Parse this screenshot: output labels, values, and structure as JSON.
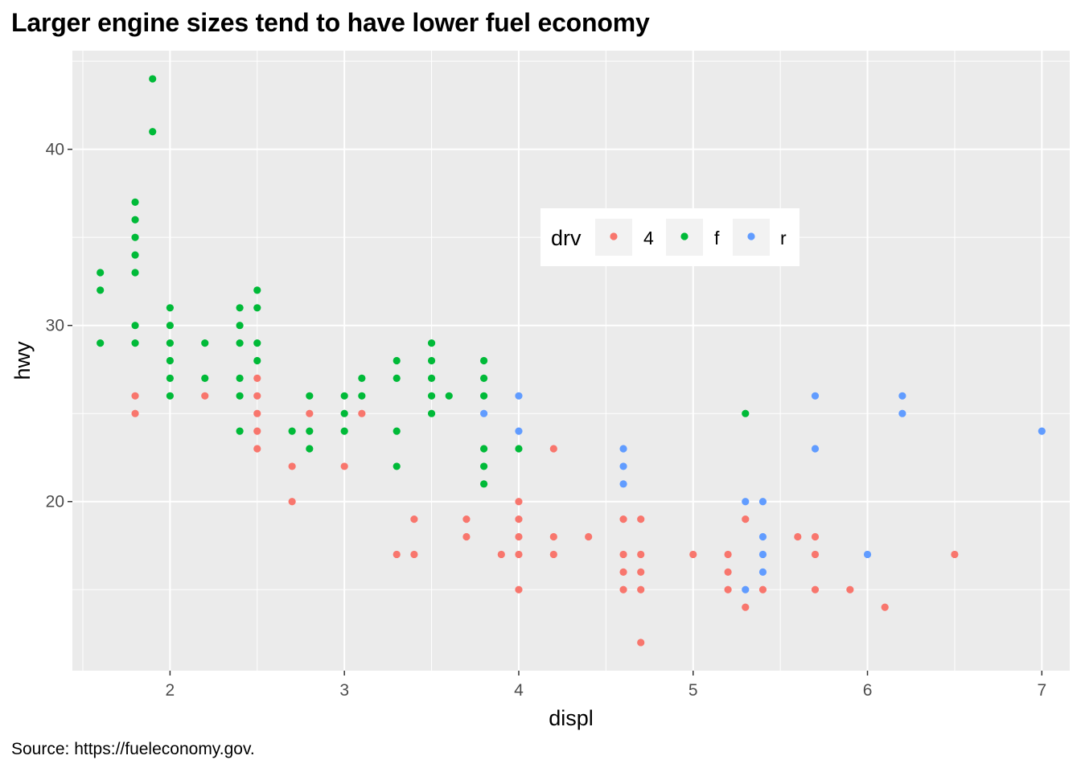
{
  "chart_data": {
    "type": "scatter",
    "title": "Larger engine sizes tend to have lower fuel economy",
    "caption": "Source: https://fueleconomy.gov.",
    "xlabel": "displ",
    "ylabel": "hwy",
    "xlim": [
      1.44,
      7.16
    ],
    "ylim": [
      10.4,
      45.6
    ],
    "xticks": [
      2,
      3,
      4,
      5,
      6,
      7
    ],
    "yticks": [
      20,
      30,
      40
    ],
    "grid": true,
    "legend": {
      "title": "drv",
      "placement": "inside-top",
      "entries": [
        "4",
        "f",
        "r"
      ]
    },
    "colors": {
      "4": "#F8766D",
      "f": "#00BA38",
      "r": "#619CFF"
    },
    "series": [
      {
        "name": "4",
        "points": [
          [
            1.8,
            26
          ],
          [
            1.8,
            25
          ],
          [
            2.2,
            26
          ],
          [
            2.5,
            27
          ],
          [
            2.5,
            26
          ],
          [
            2.5,
            25
          ],
          [
            2.5,
            24
          ],
          [
            2.5,
            23
          ],
          [
            2.7,
            22
          ],
          [
            2.7,
            20
          ],
          [
            2.8,
            25
          ],
          [
            3.0,
            22
          ],
          [
            3.1,
            25
          ],
          [
            3.3,
            17
          ],
          [
            3.4,
            19
          ],
          [
            3.4,
            17
          ],
          [
            3.7,
            19
          ],
          [
            3.7,
            18
          ],
          [
            3.9,
            17
          ],
          [
            4.0,
            20
          ],
          [
            4.0,
            19
          ],
          [
            4.0,
            18
          ],
          [
            4.0,
            17
          ],
          [
            4.0,
            15
          ],
          [
            4.2,
            23
          ],
          [
            4.2,
            18
          ],
          [
            4.2,
            17
          ],
          [
            4.4,
            18
          ],
          [
            4.6,
            19
          ],
          [
            4.6,
            17
          ],
          [
            4.6,
            16
          ],
          [
            4.6,
            15
          ],
          [
            4.7,
            19
          ],
          [
            4.7,
            17
          ],
          [
            4.7,
            16
          ],
          [
            4.7,
            15
          ],
          [
            4.7,
            12
          ],
          [
            5.0,
            17
          ],
          [
            5.2,
            17
          ],
          [
            5.2,
            16
          ],
          [
            5.2,
            15
          ],
          [
            5.3,
            19
          ],
          [
            5.3,
            14
          ],
          [
            5.4,
            15
          ],
          [
            5.6,
            18
          ],
          [
            5.7,
            18
          ],
          [
            5.7,
            17
          ],
          [
            5.7,
            15
          ],
          [
            5.9,
            15
          ],
          [
            6.1,
            14
          ],
          [
            6.5,
            17
          ]
        ]
      },
      {
        "name": "f",
        "points": [
          [
            1.6,
            33
          ],
          [
            1.6,
            32
          ],
          [
            1.6,
            29
          ],
          [
            1.8,
            37
          ],
          [
            1.8,
            36
          ],
          [
            1.8,
            35
          ],
          [
            1.8,
            34
          ],
          [
            1.8,
            33
          ],
          [
            1.8,
            30
          ],
          [
            1.8,
            29
          ],
          [
            1.9,
            44
          ],
          [
            1.9,
            41
          ],
          [
            2.0,
            31
          ],
          [
            2.0,
            30
          ],
          [
            2.0,
            29
          ],
          [
            2.0,
            28
          ],
          [
            2.0,
            27
          ],
          [
            2.0,
            26
          ],
          [
            2.2,
            29
          ],
          [
            2.2,
            27
          ],
          [
            2.4,
            31
          ],
          [
            2.4,
            30
          ],
          [
            2.4,
            29
          ],
          [
            2.4,
            27
          ],
          [
            2.4,
            26
          ],
          [
            2.4,
            24
          ],
          [
            2.5,
            32
          ],
          [
            2.5,
            31
          ],
          [
            2.5,
            29
          ],
          [
            2.5,
            28
          ],
          [
            2.7,
            24
          ],
          [
            2.8,
            26
          ],
          [
            2.8,
            24
          ],
          [
            2.8,
            23
          ],
          [
            3.0,
            26
          ],
          [
            3.0,
            25
          ],
          [
            3.0,
            24
          ],
          [
            3.1,
            27
          ],
          [
            3.1,
            26
          ],
          [
            3.3,
            28
          ],
          [
            3.3,
            27
          ],
          [
            3.3,
            24
          ],
          [
            3.3,
            22
          ],
          [
            3.5,
            29
          ],
          [
            3.5,
            28
          ],
          [
            3.5,
            27
          ],
          [
            3.5,
            26
          ],
          [
            3.5,
            25
          ],
          [
            3.6,
            26
          ],
          [
            3.8,
            28
          ],
          [
            3.8,
            27
          ],
          [
            3.8,
            26
          ],
          [
            3.8,
            23
          ],
          [
            3.8,
            22
          ],
          [
            3.8,
            21
          ],
          [
            4.0,
            23
          ],
          [
            5.3,
            25
          ]
        ]
      },
      {
        "name": "r",
        "points": [
          [
            3.8,
            25
          ],
          [
            4.0,
            26
          ],
          [
            4.0,
            24
          ],
          [
            4.6,
            23
          ],
          [
            4.6,
            22
          ],
          [
            4.6,
            21
          ],
          [
            5.3,
            20
          ],
          [
            5.3,
            15
          ],
          [
            5.4,
            20
          ],
          [
            5.4,
            18
          ],
          [
            5.4,
            17
          ],
          [
            5.4,
            16
          ],
          [
            5.7,
            26
          ],
          [
            5.7,
            23
          ],
          [
            6.0,
            17
          ],
          [
            6.2,
            26
          ],
          [
            6.2,
            25
          ],
          [
            7.0,
            24
          ]
        ]
      }
    ]
  }
}
